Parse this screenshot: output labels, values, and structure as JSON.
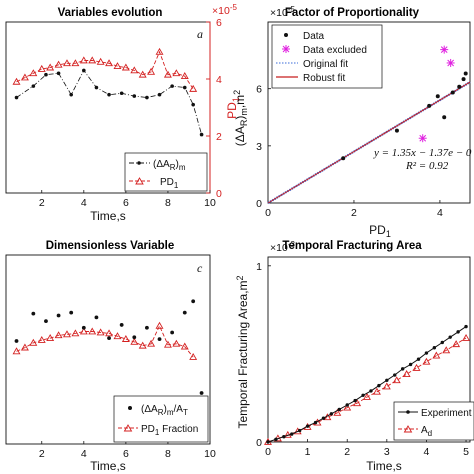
{
  "colors": {
    "black": "#111111",
    "red": "#d42020",
    "magenta": "#e020e0",
    "blue": "#3a6bd8",
    "robust": "#c81e1e"
  },
  "chart_data": [
    {
      "id": "a",
      "type": "line",
      "title": "Variables evolution",
      "panel_tag": "a",
      "xlabel": "Time,s",
      "ylabel_right": "PD1",
      "y2_exponent": "×10",
      "y2_exponent_power": "-5",
      "xticks": [
        "2",
        "4",
        "6",
        "8",
        "10"
      ],
      "y2ticks": [
        "0",
        "2",
        "4",
        "6"
      ],
      "xlim": [
        0.3,
        10
      ],
      "y2lim": [
        0,
        6
      ],
      "legend": {
        "position": "bottom-right",
        "entries": [
          "(ΔA_R)_m",
          "PD_1"
        ]
      },
      "series": [
        {
          "name": "(ΔA_R)_m",
          "style": "dash-dot black",
          "x": [
            0.8,
            1.6,
            2.2,
            2.8,
            3.4,
            4.0,
            4.6,
            5.2,
            5.8,
            6.4,
            7.0,
            7.6,
            8.2,
            8.8,
            9.2,
            9.6
          ],
          "y": [
            3.35,
            3.75,
            4.15,
            4.2,
            3.45,
            4.3,
            3.7,
            3.45,
            3.5,
            3.4,
            3.35,
            3.45,
            3.75,
            3.7,
            3.1,
            2.05
          ]
        },
        {
          "name": "PD_1",
          "style": "dashed red with triangles",
          "x": [
            0.8,
            1.2,
            1.6,
            2.0,
            2.4,
            2.8,
            3.2,
            3.6,
            4.0,
            4.4,
            4.8,
            5.2,
            5.6,
            6.0,
            6.4,
            6.8,
            7.2,
            7.6,
            8.0,
            8.4,
            8.8,
            9.2
          ],
          "y": [
            3.9,
            4.05,
            4.2,
            4.35,
            4.4,
            4.5,
            4.55,
            4.55,
            4.65,
            4.65,
            4.6,
            4.55,
            4.45,
            4.4,
            4.3,
            4.15,
            4.25,
            4.95,
            4.15,
            4.2,
            4.1,
            3.65
          ]
        }
      ]
    },
    {
      "id": "b",
      "type": "scatter",
      "title": "Factor of Proportionality",
      "xlabel": "PD1",
      "ylabel": "(ΔA_R)_m,m^2",
      "y_exponent": "×10",
      "y_exponent_power": "-5",
      "xticks": [
        "0",
        "2",
        "4"
      ],
      "yticks": [
        "0",
        "3",
        "6"
      ],
      "xlim": [
        0,
        4.7
      ],
      "ylim": [
        0,
        9.5
      ],
      "legend": {
        "position": "top-left",
        "entries": [
          "Data",
          "Data excluded",
          "Original fit",
          "Robust fit"
        ]
      },
      "annotation": {
        "equation": "y = 1.35x − 1.37e − 0",
        "r2": "R² = 0.92"
      },
      "points": {
        "x": [
          1.75,
          3.0,
          3.75,
          3.95,
          4.1,
          4.3,
          4.45,
          4.55,
          4.6
        ],
        "y": [
          2.35,
          3.8,
          5.1,
          5.6,
          4.5,
          5.8,
          6.1,
          6.5,
          6.8
        ]
      },
      "excluded": {
        "x": [
          3.6,
          4.1,
          4.25
        ],
        "y": [
          3.4,
          8.05,
          7.35
        ]
      },
      "fit": {
        "slope": 1.35,
        "intercept": 0.0
      }
    },
    {
      "id": "c",
      "type": "line",
      "title": "Dimensionless Variable",
      "panel_tag": "c",
      "xlabel": "Time,s",
      "xticks": [
        "2",
        "4",
        "6",
        "8",
        "10"
      ],
      "xlim": [
        0.3,
        10
      ],
      "ylim": [
        0,
        10
      ],
      "legend": {
        "position": "bottom-right",
        "entries": [
          "(ΔA_R)_m/A_T",
          "PD_1 Fraction"
        ]
      },
      "series": [
        {
          "name": "(ΔA_R)_m/A_T",
          "style": "black dots",
          "x": [
            0.8,
            1.6,
            2.2,
            2.8,
            3.4,
            4.0,
            4.6,
            5.2,
            5.8,
            6.4,
            7.0,
            7.6,
            8.2,
            8.8,
            9.2,
            9.6
          ],
          "y": [
            5.45,
            6.9,
            6.5,
            6.8,
            6.95,
            6.15,
            6.7,
            5.6,
            6.3,
            5.65,
            6.15,
            5.55,
            5.9,
            6.95,
            7.55,
            2.7
          ]
        },
        {
          "name": "PD_1 Fraction",
          "style": "dashed red with triangles",
          "x": [
            0.8,
            1.2,
            1.6,
            2.0,
            2.4,
            2.8,
            3.2,
            3.6,
            4.0,
            4.4,
            4.8,
            5.2,
            5.6,
            6.0,
            6.4,
            6.8,
            7.2,
            7.6,
            8.0,
            8.4,
            8.8,
            9.2
          ],
          "y": [
            4.9,
            5.1,
            5.35,
            5.5,
            5.6,
            5.75,
            5.8,
            5.85,
            5.95,
            5.95,
            5.9,
            5.85,
            5.7,
            5.55,
            5.4,
            5.2,
            5.3,
            6.25,
            5.25,
            5.3,
            5.15,
            4.6
          ]
        }
      ]
    },
    {
      "id": "d",
      "type": "line",
      "title": "Temporal Fracturing Area",
      "xlabel": "Time,s",
      "ylabel": "Temporal Fracturing Area,m^2",
      "y_exponent": "×10",
      "y_exponent_power": "-3",
      "xticks": [
        "0",
        "1",
        "2",
        "3",
        "4",
        "5"
      ],
      "yticks": [
        "0",
        "1"
      ],
      "xlim": [
        0,
        5.1
      ],
      "ylim": [
        0,
        1.05
      ],
      "legend": {
        "position": "bottom-right",
        "entries": [
          "Experiment",
          "A_d"
        ]
      },
      "series": [
        {
          "name": "Experiment",
          "style": "black line with dots",
          "x": [
            0,
            0.2,
            0.4,
            0.6,
            0.8,
            1.0,
            1.2,
            1.4,
            1.6,
            1.8,
            2.0,
            2.2,
            2.4,
            2.6,
            2.8,
            3.0,
            3.2,
            3.4,
            3.6,
            3.8,
            4.0,
            4.2,
            4.4,
            4.6,
            4.8,
            5.0
          ],
          "y": [
            0,
            0.015,
            0.03,
            0.045,
            0.065,
            0.09,
            0.11,
            0.135,
            0.16,
            0.185,
            0.21,
            0.235,
            0.265,
            0.29,
            0.32,
            0.35,
            0.38,
            0.415,
            0.44,
            0.47,
            0.505,
            0.535,
            0.565,
            0.595,
            0.625,
            0.655
          ]
        },
        {
          "name": "A_d",
          "style": "dashed red with triangles",
          "x": [
            0,
            0.25,
            0.5,
            0.75,
            1.0,
            1.25,
            1.5,
            1.75,
            2.0,
            2.25,
            2.5,
            2.75,
            3.0,
            3.25,
            3.5,
            3.75,
            4.0,
            4.25,
            4.5,
            4.75,
            5.0
          ],
          "y": [
            0,
            0.02,
            0.04,
            0.06,
            0.085,
            0.11,
            0.14,
            0.165,
            0.195,
            0.22,
            0.255,
            0.285,
            0.315,
            0.35,
            0.385,
            0.42,
            0.455,
            0.49,
            0.52,
            0.555,
            0.59
          ]
        }
      ]
    }
  ]
}
